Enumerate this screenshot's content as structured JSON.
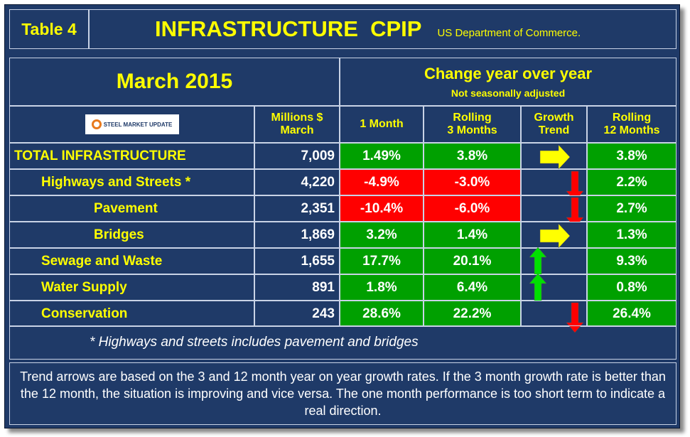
{
  "header": {
    "table_label": "Table 4",
    "title": "INFRASTRUCTURE  CPIP",
    "source": "US Department of Commerce."
  },
  "period": "March 2015",
  "logo_text": "STEEL MARKET UPDATE",
  "change_header": "Change year over year",
  "nsa_label": "Not seasonally adjusted",
  "columns": {
    "millions": [
      "Millions $",
      "March"
    ],
    "one_month": "1 Month",
    "rolling3": [
      "Rolling",
      "3 Months"
    ],
    "growth": [
      "Growth",
      "Trend"
    ],
    "rolling12": [
      "Rolling",
      "12 Months"
    ]
  },
  "colors": {
    "background": "#1f3a68",
    "positive": "#00a000",
    "negative": "#ff0000",
    "label": "#ffff00",
    "trend_up": "#00e000",
    "trend_side": "#ffff00",
    "trend_down": "#ff0000"
  },
  "chart_data": {
    "type": "table",
    "rows": [
      {
        "name": "TOTAL INFRASTRUCTURE",
        "millions": "7,009",
        "one_month": "1.49%",
        "rolling3": "3.8%",
        "trend": "right",
        "rolling12": "3.8%",
        "m1_neg": false,
        "m3_neg": false
      },
      {
        "name": "Highways and Streets *",
        "millions": "4,220",
        "one_month": "-4.9%",
        "rolling3": "-3.0%",
        "trend": "down",
        "rolling12": "2.2%",
        "m1_neg": true,
        "m3_neg": true
      },
      {
        "name": "Pavement",
        "millions": "2,351",
        "one_month": "-10.4%",
        "rolling3": "-6.0%",
        "trend": "down",
        "rolling12": "2.7%",
        "m1_neg": true,
        "m3_neg": true
      },
      {
        "name": "Bridges",
        "millions": "1,869",
        "one_month": "3.2%",
        "rolling3": "1.4%",
        "trend": "right",
        "rolling12": "1.3%",
        "m1_neg": false,
        "m3_neg": false
      },
      {
        "name": "Sewage and Waste",
        "millions": "1,655",
        "one_month": "17.7%",
        "rolling3": "20.1%",
        "trend": "up",
        "rolling12": "9.3%",
        "m1_neg": false,
        "m3_neg": false
      },
      {
        "name": "Water Supply",
        "millions": "891",
        "one_month": "1.8%",
        "rolling3": "6.4%",
        "trend": "up",
        "rolling12": "0.8%",
        "m1_neg": false,
        "m3_neg": false
      },
      {
        "name": "Conservation",
        "millions": "243",
        "one_month": "28.6%",
        "rolling3": "22.2%",
        "trend": "down",
        "rolling12": "26.4%",
        "m1_neg": false,
        "m3_neg": false
      }
    ]
  },
  "footnote": "* Highways and streets includes pavement and bridges",
  "note": "Trend arrows are based on the 3 and 12 month year on year growth rates. If the 3 month growth rate is better than the 12 month, the situation is improving and vice versa. The one month performance is too short term to indicate a real direction."
}
